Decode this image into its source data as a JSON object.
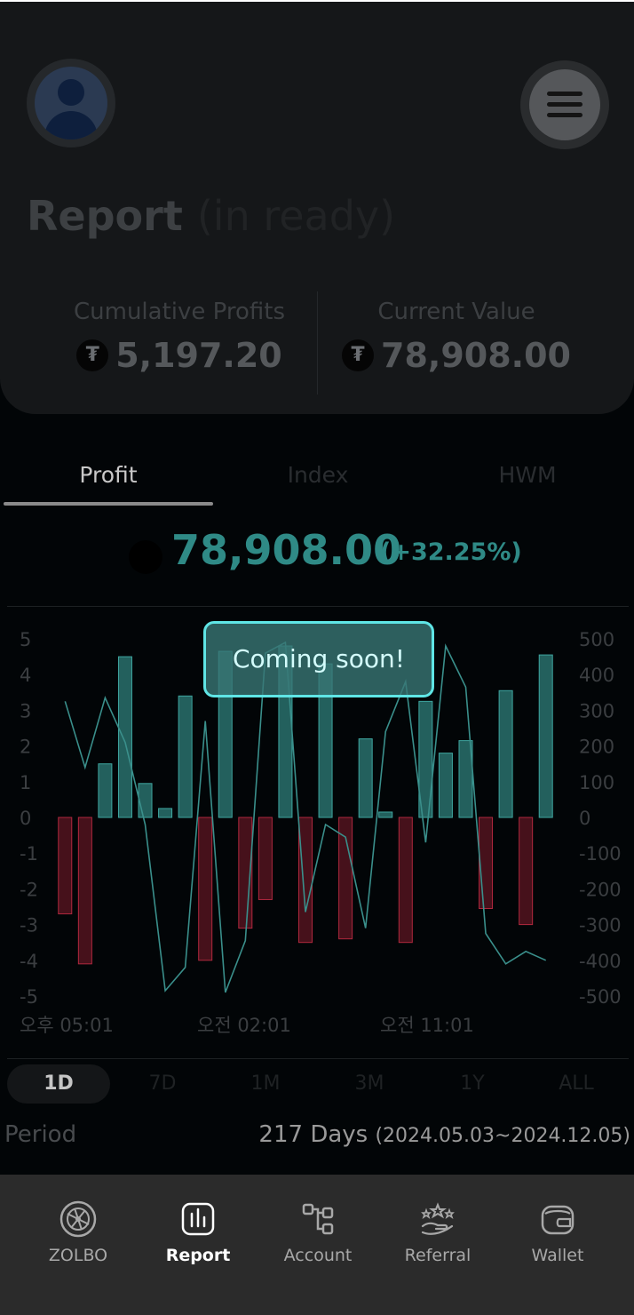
{
  "header": {
    "title": "Report",
    "title_suffix": "(in ready)",
    "cumulative_profits_label": "Cumulative Profits",
    "cumulative_profits_value": "5,197.20",
    "current_value_label": "Current Value",
    "current_value_value": "78,908.00",
    "coin_symbol": "₮"
  },
  "tabs": [
    {
      "label": "Profit",
      "active": true
    },
    {
      "label": "Index",
      "active": false
    },
    {
      "label": "HWM",
      "active": false
    }
  ],
  "summary": {
    "value": "78,908.00",
    "change": "(+32.25%)"
  },
  "toast": {
    "message": "Coming soon!"
  },
  "chart_data": {
    "type": "bar",
    "left_axis_ticks": [
      "5",
      "4",
      "3",
      "2",
      "1",
      "0",
      "-1",
      "-2",
      "-3",
      "-4",
      "-5"
    ],
    "right_axis_ticks": [
      "500",
      "400",
      "300",
      "200",
      "100",
      "0",
      "-100",
      "-200",
      "-300",
      "-400",
      "-500"
    ],
    "x_tick_labels": [
      "오후 05:01",
      "오전 02:01",
      "오전 11:01"
    ],
    "left_ylim": [
      -5,
      5
    ],
    "right_ylim": [
      -500,
      500
    ],
    "series": [
      {
        "type": "bar",
        "axis": "left",
        "values": [
          -2.7,
          -4.1,
          1.5,
          4.5,
          0.95,
          0.25,
          3.4,
          -4.0,
          4.65,
          -3.1,
          -2.3,
          4.8,
          -3.5,
          4.3,
          -3.4,
          2.2,
          0.15,
          -3.5,
          3.25,
          1.8,
          2.15,
          -2.55,
          3.55,
          -3.0,
          4.55
        ],
        "positive_color": "#2f7f7b",
        "negative_color": "#7f1c2c"
      },
      {
        "type": "line",
        "axis": "right",
        "values": [
          325,
          140,
          335,
          210,
          -20,
          -485,
          -420,
          270,
          -490,
          -345,
          460,
          490,
          -265,
          -20,
          -55,
          -310,
          240,
          380,
          -70,
          480,
          365,
          -325,
          -410,
          -375,
          -400
        ],
        "color": "#3a8f8b"
      }
    ],
    "grid": false
  },
  "periods": [
    {
      "label": "1D",
      "active": true
    },
    {
      "label": "7D",
      "active": false
    },
    {
      "label": "1M",
      "active": false
    },
    {
      "label": "3M",
      "active": false
    },
    {
      "label": "1Y",
      "active": false
    },
    {
      "label": "ALL",
      "active": false
    }
  ],
  "period_info": {
    "label": "Period",
    "days": "217 Days",
    "range": "(2024.05.03~2024.12.05)"
  },
  "nav": [
    {
      "label": "ZOLBO",
      "icon": "zolbo-icon",
      "active": false
    },
    {
      "label": "Report",
      "icon": "report-icon",
      "active": true
    },
    {
      "label": "Account",
      "icon": "account-icon",
      "active": false
    },
    {
      "label": "Referral",
      "icon": "referral-icon",
      "active": false
    },
    {
      "label": "Wallet",
      "icon": "wallet-icon",
      "active": false
    }
  ]
}
